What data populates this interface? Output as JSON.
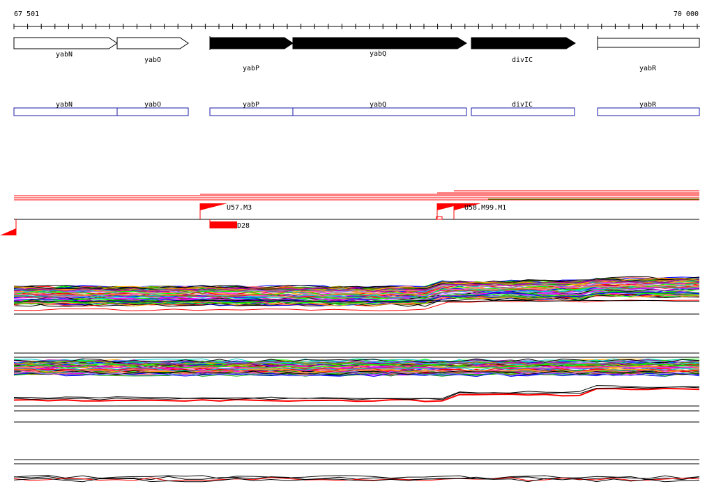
{
  "ruler": {
    "start_label": "67 501",
    "end_label": "70 000"
  },
  "genes": [
    {
      "id": "yabN",
      "label": "yabN",
      "filled": false,
      "label_row": "upper"
    },
    {
      "id": "yabO",
      "label": "yabO",
      "filled": false,
      "label_row": "middle"
    },
    {
      "id": "yabP",
      "label": "yabP",
      "filled": true,
      "label_row": "lower"
    },
    {
      "id": "yabQ",
      "label": "yabQ",
      "filled": true,
      "label_row": "upper"
    },
    {
      "id": "divIC",
      "label": "divIC",
      "filled": true,
      "label_row": "middle"
    },
    {
      "id": "yabR",
      "label": "yabR",
      "filled": false,
      "label_row": "lower"
    }
  ],
  "features": [
    {
      "id": "yabN",
      "label": "yabN"
    },
    {
      "id": "yabO",
      "label": "yabO"
    },
    {
      "id": "yabP",
      "label": "yabP"
    },
    {
      "id": "yabQ",
      "label": "yabQ"
    },
    {
      "id": "divIC",
      "label": "divIC"
    },
    {
      "id": "yabR",
      "label": "yabR"
    }
  ],
  "markers": [
    {
      "id": "U57.M3",
      "label": "U57.M3"
    },
    {
      "id": "U58.M99.M1",
      "label": "U58.M99.M1"
    },
    {
      "id": "D28",
      "label": "D28"
    }
  ],
  "colors": {
    "feature_box": "#1a1aa6",
    "marker": "#ff0000",
    "profile_palette": [
      "#ff0000",
      "#00aa00",
      "#0000ff",
      "#ff00ff",
      "#00cccc",
      "#ffaa00",
      "#888800",
      "#aa00aa",
      "#00ff00",
      "#ff8080",
      "#000000",
      "#8080ff"
    ]
  }
}
